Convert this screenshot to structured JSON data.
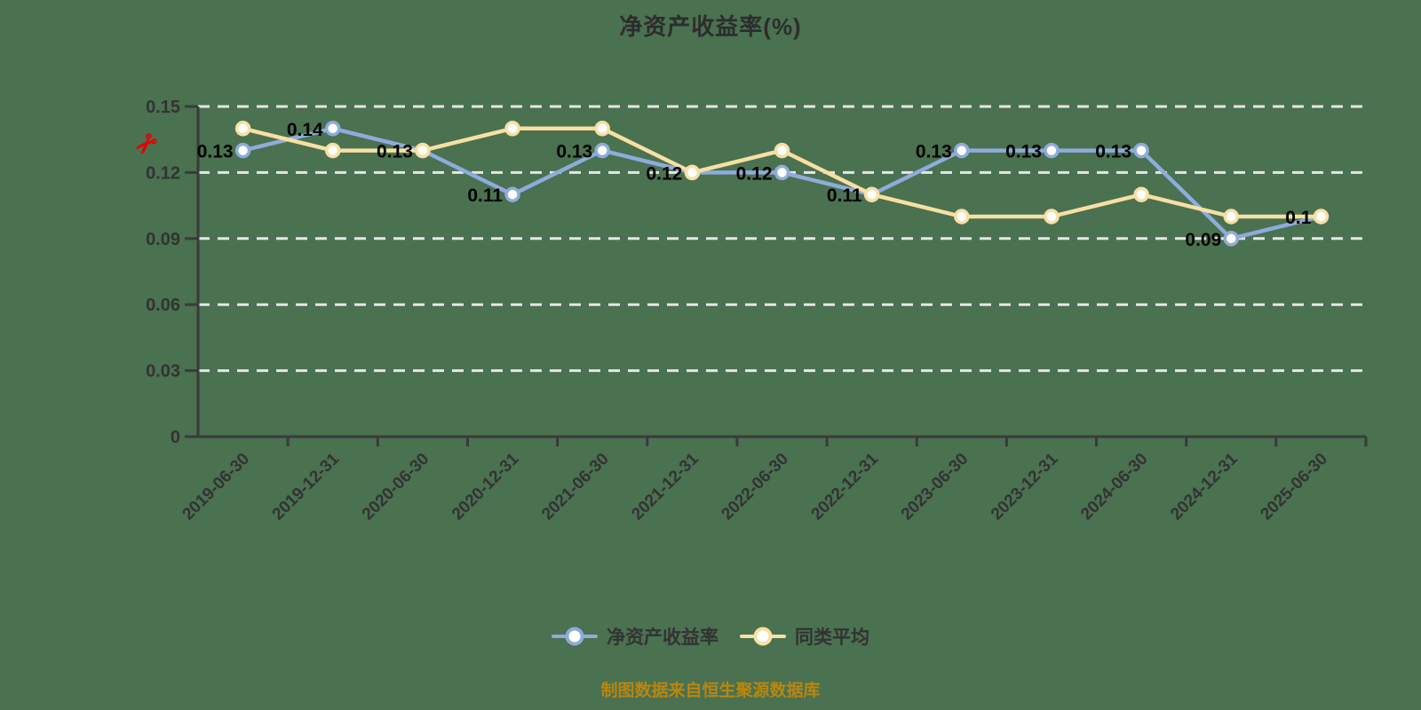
{
  "title": "净资产收益率(%)",
  "footer": "制图数据来自恒生聚源数据库",
  "icons": {
    "axis_scissors": "✂"
  },
  "colors": {
    "background": "#4a7150",
    "series_main": "#8fabdc",
    "series_average": "#f8dfa2",
    "marker_fill": "#ffffff",
    "grid": "#e6e6e6",
    "axis": "#3a3a3a",
    "tick_text": "#333333",
    "value_label": "#000000",
    "footer_text": "#b9860f",
    "scissors": "#e60000"
  },
  "legend": [
    {
      "label": "净资产收益率",
      "color": "#8fabdc"
    },
    {
      "label": "同类平均",
      "color": "#f8dfa2"
    }
  ],
  "chart_data": {
    "type": "line",
    "title": "净资产收益率(%)",
    "xlabel": "",
    "ylabel": "",
    "categories": [
      "2019-06-30",
      "2019-12-31",
      "2020-06-30",
      "2020-12-31",
      "2021-06-30",
      "2021-12-31",
      "2022-06-30",
      "2022-12-31",
      "2023-06-30",
      "2023-12-31",
      "2024-06-30",
      "2024-12-31",
      "2025-06-30"
    ],
    "series": [
      {
        "name": "净资产收益率",
        "color": "#8fabdc",
        "values": [
          0.13,
          0.14,
          0.13,
          0.11,
          0.13,
          0.12,
          0.12,
          0.11,
          0.13,
          0.13,
          0.13,
          0.09,
          0.1
        ],
        "labels": [
          "0.13",
          "0.14",
          "0.13",
          "0.11",
          "0.13",
          "0.12",
          "0.12",
          "0.11",
          "0.13",
          "0.13",
          "0.13",
          "0.09",
          "0.1"
        ]
      },
      {
        "name": "同类平均",
        "color": "#f8dfa2",
        "values": [
          0.14,
          0.13,
          0.13,
          0.14,
          0.14,
          0.12,
          0.13,
          0.11,
          0.1,
          0.1,
          0.11,
          0.1,
          0.1
        ]
      }
    ],
    "y_ticks": [
      0,
      0.03,
      0.06,
      0.09,
      0.12,
      0.15
    ],
    "ylim": [
      0,
      0.15
    ],
    "grid": true,
    "grid_style": "white-dashed",
    "legend_position": "bottom"
  }
}
